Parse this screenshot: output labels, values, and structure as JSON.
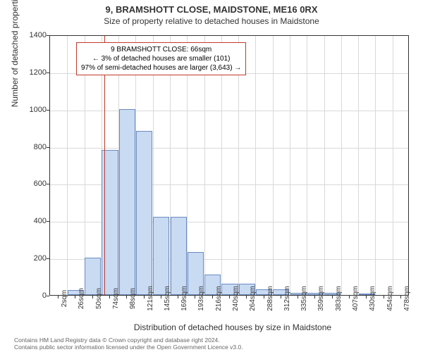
{
  "title": "9, BRAMSHOTT CLOSE, MAIDSTONE, ME16 0RX",
  "subtitle": "Size of property relative to detached houses in Maidstone",
  "ylabel": "Number of detached properties",
  "xlabel": "Distribution of detached houses by size in Maidstone",
  "footer_line1": "Contains HM Land Registry data © Crown copyright and database right 2024.",
  "footer_line2": "Contains public sector information licensed under the Open Government Licence v3.0.",
  "callout": {
    "line1": "9 BRAMSHOTT CLOSE: 66sqm",
    "line2": "← 3% of detached houses are smaller (101)",
    "line3": "97% of semi-detached houses are larger (3,643) →",
    "border_color": "#c0392b"
  },
  "marker_line": {
    "x_value": 66,
    "color": "#c0392b",
    "width": 1
  },
  "chart": {
    "type": "bar",
    "bar_fill": "#c9daf3",
    "bar_stroke": "#6a8bc0",
    "grid_color": "#d9d9d9",
    "background_color": "#ffffff",
    "y": {
      "min": 0,
      "max": 1400,
      "step": 200
    },
    "x": {
      "labels": [
        "2sqm",
        "26sqm",
        "50sqm",
        "74sqm",
        "98sqm",
        "121sqm",
        "145sqm",
        "169sqm",
        "193sqm",
        "216sqm",
        "240sqm",
        "264sqm",
        "288sqm",
        "312sqm",
        "335sqm",
        "359sqm",
        "383sqm",
        "407sqm",
        "430sqm",
        "454sqm",
        "478sqm"
      ]
    },
    "bars": [
      0,
      25,
      200,
      780,
      1000,
      880,
      420,
      420,
      230,
      110,
      60,
      60,
      30,
      30,
      10,
      10,
      10,
      0,
      5,
      0,
      0
    ]
  },
  "fonts": {
    "title_size": 13,
    "subtitle_size": 12,
    "axis_label_size": 12,
    "tick_size": 11,
    "callout_size": 10,
    "footer_size": 8.5
  }
}
